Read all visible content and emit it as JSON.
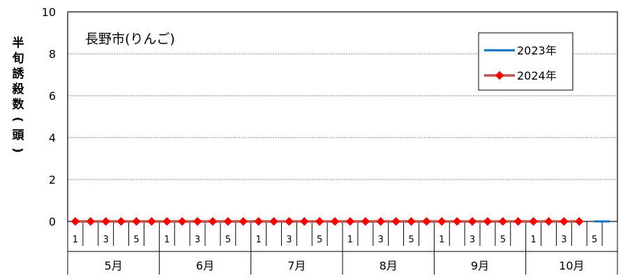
{
  "chart_data": {
    "type": "line",
    "title": "長野市(りんご)",
    "ylabel": "半旬誘殺数(頭)",
    "xlabel": "",
    "ylim": [
      0,
      10
    ],
    "yticks": [
      0,
      2,
      4,
      6,
      8,
      10
    ],
    "grid": true,
    "legend_position": "top-right",
    "months": [
      "5月",
      "6月",
      "7月",
      "8月",
      "9月",
      "10月"
    ],
    "subperiod_labels": [
      "1",
      "",
      "3",
      "",
      "5",
      ""
    ],
    "series": [
      {
        "name": "2023年",
        "color": "#0070C0",
        "marker": "none",
        "values": [
          null,
          null,
          null,
          null,
          null,
          null,
          null,
          null,
          null,
          null,
          null,
          null,
          null,
          null,
          null,
          null,
          null,
          null,
          null,
          null,
          null,
          null,
          null,
          null,
          null,
          null,
          null,
          null,
          null,
          null,
          null,
          null,
          null,
          null,
          0,
          0
        ]
      },
      {
        "name": "2024年",
        "color": "#C0504D",
        "marker_color": "#FF0000",
        "marker": "diamond",
        "values": [
          0,
          0,
          0,
          0,
          0,
          0,
          0,
          0,
          0,
          0,
          0,
          0,
          0,
          0,
          0,
          0,
          0,
          0,
          0,
          0,
          0,
          0,
          0,
          0,
          0,
          0,
          0,
          0,
          0,
          0,
          0,
          0,
          0,
          0,
          null,
          null
        ]
      }
    ]
  }
}
